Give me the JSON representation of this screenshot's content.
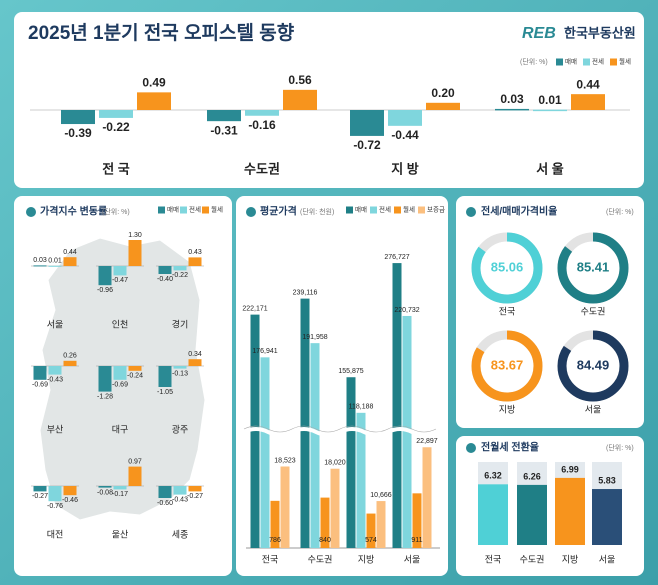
{
  "chart_data": [
    {
      "type": "grouped-bar",
      "title": "2025년 1분기 전국 오피스텔 동향",
      "logo_mark": "REB",
      "logo": "한국부동산원",
      "unit": "(단위: %)",
      "categories": [
        "전 국",
        "수도권",
        "지 방",
        "서 울"
      ],
      "series": [
        {
          "name": "매매",
          "color": "#2a8a94",
          "values": [
            -0.39,
            -0.31,
            -0.72,
            0.03
          ],
          "value_labels": [
            "-0.39",
            "-0.31",
            "-0.72",
            "0.03"
          ]
        },
        {
          "name": "전세",
          "color": "#7fd6dd",
          "values": [
            -0.22,
            -0.16,
            -0.44,
            0.01
          ],
          "value_labels": [
            "-0.22",
            "-0.16",
            "-0.44",
            "0.01"
          ]
        },
        {
          "name": "월세",
          "color": "#f7941d",
          "values": [
            0.49,
            0.56,
            0.2,
            0.44
          ],
          "value_labels": [
            "0.49",
            "0.56",
            "0.20",
            "0.44"
          ]
        }
      ]
    },
    {
      "type": "map-bar",
      "title": "가격지수 변동률",
      "unit": "(단위: %)",
      "categories": [
        "서울",
        "인천",
        "경기",
        "부산",
        "대구",
        "광주",
        "대전",
        "울산",
        "세종"
      ],
      "series": [
        {
          "name": "매매",
          "color": "#2a8a94",
          "values": [
            0.03,
            -0.96,
            -0.4,
            -0.69,
            -1.28,
            -1.05,
            -0.27,
            -0.08,
            -0.6
          ],
          "value_labels": [
            "0.03",
            "-0.96",
            "-0.40",
            "-0.69",
            "-1.28",
            "-1.05",
            "-0.27",
            "-0.08",
            "-0.60"
          ]
        },
        {
          "name": "전세",
          "color": "#7fd6dd",
          "values": [
            0.01,
            -0.47,
            -0.22,
            -0.43,
            -0.69,
            -0.13,
            -0.76,
            -0.17,
            -0.43
          ],
          "value_labels": [
            "0.01",
            "-0.47",
            "-0.22",
            "-0.43",
            "-0.69",
            "-0.13",
            "-0.76",
            "-0.17",
            "-0.43"
          ]
        },
        {
          "name": "월세",
          "color": "#f7941d",
          "values": [
            0.44,
            1.3,
            0.43,
            0.26,
            -0.24,
            0.34,
            -0.46,
            0.97,
            -0.27
          ],
          "value_labels": [
            "0.44",
            "1.30",
            "0.43",
            "0.26",
            "-0.24",
            "0.34",
            "-0.46",
            "0.97",
            "-0.27"
          ]
        }
      ]
    },
    {
      "type": "broken-bar",
      "title": "평균가격",
      "unit": "(단위: 천원)",
      "categories": [
        "전국",
        "수도권",
        "지방",
        "서울"
      ],
      "series": [
        {
          "name": "매매",
          "color": "#1f7f86",
          "values": [
            222171,
            239116,
            155875,
            276727
          ],
          "value_labels": [
            "222,171",
            "239,116",
            "155,875",
            "276,727"
          ]
        },
        {
          "name": "전세",
          "color": "#7fd6dd",
          "values": [
            176941,
            191958,
            118188,
            220732
          ],
          "value_labels": [
            "176,941",
            "191,958",
            "118,188",
            "220,732"
          ]
        },
        {
          "name": "월세",
          "color": "#f7941d",
          "values": [
            786,
            840,
            574,
            911
          ]
        },
        {
          "name": "보증금",
          "color": "#fbbf7f",
          "values": [
            18523,
            18020,
            10666,
            22897
          ],
          "value_labels": [
            "18,523",
            "18,020",
            "10,666",
            "22,897"
          ]
        }
      ]
    },
    {
      "type": "donut",
      "title": "전세/매매가격비율",
      "unit": "(단위: %)",
      "categories": [
        "전국",
        "수도권",
        "지방",
        "서울"
      ],
      "values": [
        85.06,
        85.41,
        83.67,
        84.49
      ],
      "colors": [
        "#4fd0d6",
        "#1f7f86",
        "#f7941d",
        "#1e3a5f"
      ]
    },
    {
      "type": "bar",
      "title": "전월세 전환율",
      "unit": "(단위: %)",
      "categories": [
        "전국",
        "수도권",
        "지방",
        "서울"
      ],
      "values": [
        6.32,
        6.26,
        6.99,
        5.83
      ],
      "colors": [
        "#4fd0d6",
        "#1f7f86",
        "#f7941d",
        "#2a4f78"
      ]
    }
  ]
}
